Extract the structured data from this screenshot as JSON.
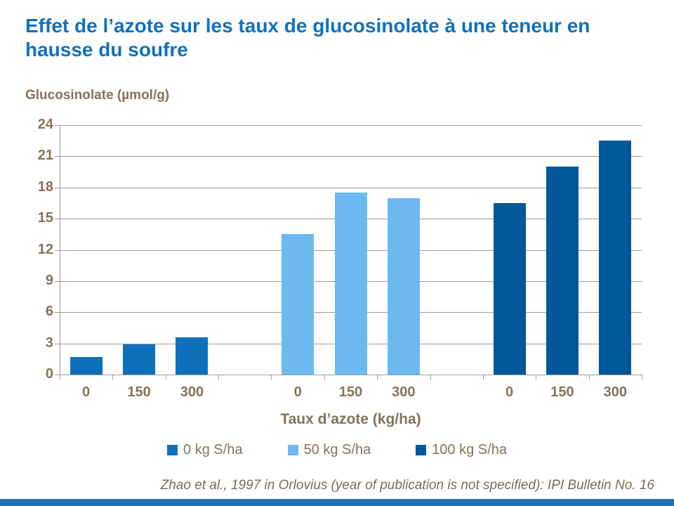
{
  "slide": {
    "title": "Effet de l’azote sur les taux de glucosinolate à une teneur en hausse du soufre",
    "footer": "Zhao et al., 1997 in Orlovius (year of publication is not specified): IPI Bulletin No. 16"
  },
  "colors": {
    "title_blue": "#0F71BE",
    "axis_text_brown": "#84735A",
    "gridline_gray": "#A69C8A",
    "footer_brown": "#7A6A58",
    "series_0kg_blue": "#0F71BC",
    "series_50kg_light_blue": "#6CB9F2",
    "series_100kg_dark_blue": "#00589B",
    "bottom_bar_blue": "#2571B8"
  },
  "chart_data": {
    "type": "bar",
    "title": "Effet de l’azote sur les taux de glucosinolate à une teneur en hausse du soufre",
    "ylabel": "Glucosinolate (µmol/g)",
    "xlabel": "Taux d’azote (kg/ha)",
    "ylim": [
      0,
      24
    ],
    "yticks": [
      0,
      3,
      6,
      9,
      12,
      15,
      18,
      21,
      24
    ],
    "grid": true,
    "legend_position": "bottom",
    "categories": [
      "0",
      "150",
      "300"
    ],
    "series": [
      {
        "name": "0 kg S/ha",
        "color": "#0F71BC",
        "values": [
          1.7,
          2.9,
          3.6
        ]
      },
      {
        "name": "50 kg S/ha",
        "color": "#6CB9F2",
        "values": [
          13.5,
          17.5,
          17.0
        ]
      },
      {
        "name": "100 kg S/ha",
        "color": "#00589B",
        "values": [
          16.5,
          20.0,
          22.5
        ]
      }
    ]
  }
}
